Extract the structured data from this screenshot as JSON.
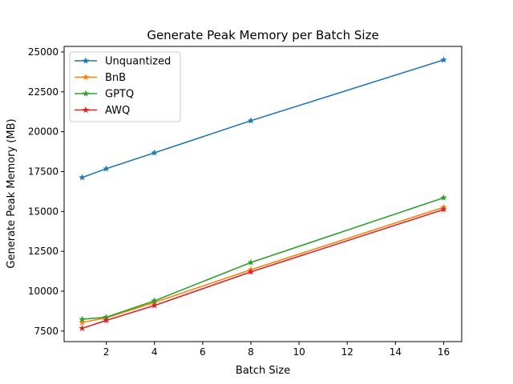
{
  "chart_data": {
    "type": "line",
    "title": "Generate Peak Memory per Batch Size",
    "xlabel": "Batch Size",
    "ylabel": "Generate Peak Memory (MB)",
    "x": [
      1,
      2,
      4,
      8,
      16
    ],
    "xlim": [
      0.25,
      16.75
    ],
    "ylim": [
      6840,
      25350
    ],
    "xticks": [
      2,
      4,
      6,
      8,
      10,
      12,
      14,
      16
    ],
    "yticks": [
      7500,
      10000,
      12500,
      15000,
      17500,
      20000,
      22500,
      25000
    ],
    "grid": false,
    "legend_position": "top-left",
    "marker": "star",
    "series": [
      {
        "name": "Unquantized",
        "color": "#1f77b4",
        "values": [
          17130,
          17680,
          18680,
          20690,
          24500
        ]
      },
      {
        "name": "BnB",
        "color": "#ff7f0e",
        "values": [
          8040,
          8330,
          9300,
          11350,
          15260
        ]
      },
      {
        "name": "GPTQ",
        "color": "#2ca02c",
        "values": [
          8240,
          8370,
          9400,
          11800,
          15860
        ]
      },
      {
        "name": "AWQ",
        "color": "#d62728",
        "values": [
          7670,
          8170,
          9100,
          11210,
          15120
        ]
      }
    ]
  }
}
